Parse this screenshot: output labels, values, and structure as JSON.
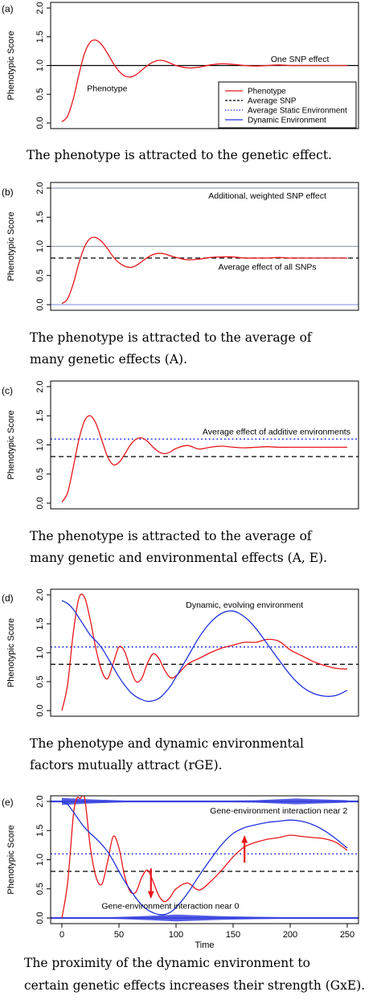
{
  "chart_data": [
    {
      "panel": "(a)",
      "type": "line",
      "ylabel": "Phenotypic Score",
      "xlim": [
        0,
        250
      ],
      "ylim": [
        0,
        2
      ],
      "yticks": [
        "0.0",
        "0.5",
        "1.0",
        "1.5",
        "2.0"
      ],
      "hlines": [
        {
          "name": "One SNP effect",
          "y": 1.0,
          "style": "solid",
          "color": "#000000"
        }
      ],
      "annotations": [
        "One SNP effect",
        "Phenotype"
      ],
      "legend": {
        "position": "bottom-right",
        "entries": [
          {
            "label": "Phenotype",
            "color": "#e8161b",
            "style": "solid"
          },
          {
            "label": "Average SNP",
            "color": "#000000",
            "style": "dashed"
          },
          {
            "label": "Average Static Environment",
            "color": "#2233dd",
            "style": "dotted"
          },
          {
            "label": "Dynamic Environment",
            "color": "#2233dd",
            "style": "solid"
          }
        ]
      },
      "series": [
        {
          "name": "Phenotype",
          "color": "#e8161b",
          "x": [
            0,
            5,
            10,
            15,
            20,
            25,
            30,
            35,
            40,
            45,
            50,
            55,
            60,
            65,
            70,
            75,
            80,
            85,
            90,
            95,
            100,
            110,
            120,
            130,
            140,
            150,
            160,
            170,
            180,
            190,
            200,
            210,
            220,
            230,
            240,
            250
          ],
          "values": [
            0.02,
            0.12,
            0.42,
            0.85,
            1.22,
            1.41,
            1.44,
            1.36,
            1.21,
            1.04,
            0.9,
            0.82,
            0.8,
            0.84,
            0.92,
            1.0,
            1.06,
            1.09,
            1.08,
            1.04,
            1.0,
            0.96,
            0.97,
            1.01,
            1.03,
            1.02,
            1.0,
            0.99,
            1.0,
            1.01,
            1.0,
            1.0,
            1.0,
            1.0,
            1.0,
            1.0
          ]
        }
      ]
    },
    {
      "panel": "(b)",
      "type": "line",
      "ylabel": "Phenotypic Score",
      "xlim": [
        0,
        250
      ],
      "ylim": [
        0,
        2
      ],
      "yticks": [
        "0.0",
        "0.5",
        "1.0",
        "1.5",
        "2.0"
      ],
      "hlines": [
        {
          "name": "Additional, weighted SNP effect",
          "y": 2.0,
          "style": "solid",
          "color": "#9aa0b4"
        },
        {
          "name": "SNP effect",
          "y": 1.0,
          "style": "solid",
          "color": "#9aa0b4"
        },
        {
          "name": "Average effect of all SNPs",
          "y": 0.8,
          "style": "dashed",
          "color": "#000000"
        },
        {
          "name": "SNP effect",
          "y": 0.0,
          "style": "solid",
          "color": "#9aa0f0"
        }
      ],
      "annotations": [
        "Additional, weighted SNP effect",
        "Average effect of all SNPs"
      ],
      "series": [
        {
          "name": "Phenotype",
          "color": "#e8161b",
          "x": [
            0,
            5,
            10,
            15,
            20,
            25,
            30,
            35,
            40,
            45,
            50,
            55,
            60,
            65,
            70,
            75,
            80,
            85,
            90,
            95,
            100,
            110,
            120,
            130,
            140,
            150,
            160,
            170,
            180,
            190,
            200,
            210,
            220,
            230,
            240,
            250
          ],
          "values": [
            0.02,
            0.1,
            0.36,
            0.72,
            1.0,
            1.14,
            1.15,
            1.08,
            0.96,
            0.82,
            0.72,
            0.66,
            0.64,
            0.67,
            0.74,
            0.81,
            0.86,
            0.88,
            0.87,
            0.84,
            0.81,
            0.77,
            0.78,
            0.81,
            0.82,
            0.82,
            0.8,
            0.8,
            0.8,
            0.81,
            0.8,
            0.8,
            0.8,
            0.8,
            0.8,
            0.8
          ]
        }
      ]
    },
    {
      "panel": "(c)",
      "type": "line",
      "ylabel": "Phenotypic Score",
      "xlim": [
        0,
        250
      ],
      "ylim": [
        0,
        2
      ],
      "yticks": [
        "0.0",
        "0.5",
        "1.0",
        "1.5",
        "2.0"
      ],
      "hlines": [
        {
          "name": "Average effect of additive environments",
          "y": 1.1,
          "style": "dotted",
          "color": "#2233dd"
        },
        {
          "name": "Average SNP",
          "y": 0.8,
          "style": "dashed",
          "color": "#000000"
        }
      ],
      "annotations": [
        "Average effect of additive environments"
      ],
      "series": [
        {
          "name": "Phenotype",
          "color": "#e8161b",
          "x": [
            0,
            5,
            10,
            15,
            20,
            25,
            30,
            35,
            40,
            45,
            50,
            55,
            60,
            65,
            70,
            75,
            80,
            85,
            90,
            95,
            100,
            110,
            120,
            130,
            140,
            150,
            160,
            170,
            180,
            190,
            200,
            210,
            220,
            230,
            240,
            250
          ],
          "values": [
            0.02,
            0.18,
            0.62,
            1.1,
            1.42,
            1.5,
            1.36,
            1.08,
            0.8,
            0.66,
            0.7,
            0.84,
            1.0,
            1.1,
            1.12,
            1.06,
            0.96,
            0.88,
            0.85,
            0.88,
            0.94,
            0.99,
            0.93,
            0.96,
            0.98,
            0.96,
            0.95,
            0.96,
            0.97,
            0.96,
            0.96,
            0.96,
            0.96,
            0.96,
            0.96,
            0.96
          ]
        }
      ]
    },
    {
      "panel": "(d)",
      "type": "line",
      "ylabel": "Phenotypic Score",
      "xlim": [
        0,
        250
      ],
      "ylim": [
        0,
        2
      ],
      "yticks": [
        "0.0",
        "0.5",
        "1.0",
        "1.5",
        "2.0"
      ],
      "hlines": [
        {
          "name": "Average Static Environment",
          "y": 1.1,
          "style": "dotted",
          "color": "#2233dd"
        },
        {
          "name": "Average SNP",
          "y": 0.8,
          "style": "dashed",
          "color": "#000000"
        }
      ],
      "annotations": [
        "Dynamic, evolving environment"
      ],
      "series": [
        {
          "name": "Phenotype",
          "color": "#e8161b",
          "x": [
            0,
            5,
            10,
            15,
            20,
            25,
            30,
            35,
            40,
            45,
            50,
            55,
            60,
            65,
            70,
            75,
            80,
            85,
            90,
            95,
            100,
            110,
            120,
            130,
            140,
            150,
            160,
            170,
            180,
            190,
            200,
            210,
            220,
            230,
            240,
            250
          ],
          "values": [
            0.0,
            0.45,
            1.35,
            1.95,
            1.95,
            1.55,
            1.05,
            0.68,
            0.55,
            0.82,
            1.1,
            1.02,
            0.72,
            0.5,
            0.56,
            0.82,
            0.98,
            0.9,
            0.7,
            0.57,
            0.6,
            0.8,
            0.9,
            1.0,
            1.08,
            1.13,
            1.18,
            1.18,
            1.23,
            1.2,
            1.05,
            0.95,
            0.85,
            0.78,
            0.73,
            0.72
          ]
        },
        {
          "name": "Dynamic Environment",
          "color": "#2233dd",
          "x": [
            0,
            5,
            10,
            15,
            20,
            25,
            30,
            35,
            40,
            45,
            50,
            55,
            60,
            65,
            70,
            75,
            80,
            85,
            90,
            95,
            100,
            110,
            120,
            130,
            140,
            150,
            160,
            170,
            180,
            190,
            200,
            210,
            220,
            230,
            240,
            250
          ],
          "values": [
            1.9,
            1.85,
            1.75,
            1.6,
            1.45,
            1.3,
            1.2,
            1.08,
            0.92,
            0.75,
            0.58,
            0.44,
            0.32,
            0.24,
            0.19,
            0.16,
            0.17,
            0.21,
            0.3,
            0.42,
            0.58,
            0.92,
            1.26,
            1.52,
            1.68,
            1.72,
            1.62,
            1.42,
            1.15,
            0.88,
            0.62,
            0.42,
            0.3,
            0.25,
            0.26,
            0.35
          ]
        }
      ]
    },
    {
      "panel": "(e)",
      "type": "line",
      "ylabel": "Phenotypic Score",
      "xlabel": "Time",
      "xlim": [
        0,
        250
      ],
      "ylim": [
        0,
        2
      ],
      "xticks": [
        "0",
        "50",
        "100",
        "150",
        "200",
        "250"
      ],
      "yticks": [
        "0.0",
        "0.5",
        "1.0",
        "1.5",
        "2.0"
      ],
      "hlines": [
        {
          "name": "Average Static Environment",
          "y": 1.1,
          "style": "dotted",
          "color": "#2233dd"
        },
        {
          "name": "Average SNP",
          "y": 0.8,
          "style": "dashed",
          "color": "#000000"
        }
      ],
      "annotations": [
        "Gene-environment interaction near 2",
        "Gene-environment interaction near 0"
      ],
      "bands": [
        {
          "y": 2.0,
          "color": "#3a43e0",
          "widths": [
            [
              0,
              0.06
            ],
            [
              20,
              0.04
            ],
            [
              60,
              0.01
            ],
            [
              110,
              0.0
            ],
            [
              170,
              0.02
            ],
            [
              205,
              0.05
            ],
            [
              250,
              0.02
            ]
          ]
        },
        {
          "y": 0.0,
          "color": "#3a43e0",
          "widths": [
            [
              0,
              0.0
            ],
            [
              40,
              0.01
            ],
            [
              80,
              0.04
            ],
            [
              100,
              0.06
            ],
            [
              140,
              0.03
            ],
            [
              200,
              0.01
            ],
            [
              250,
              0.0
            ]
          ]
        }
      ],
      "arrows": [
        {
          "x": 78,
          "from": 0.85,
          "to": 0.35,
          "color": "#e8161b"
        },
        {
          "x": 160,
          "from": 0.95,
          "to": 1.4,
          "color": "#e8161b"
        }
      ],
      "series": [
        {
          "name": "Phenotype",
          "color": "#e8161b",
          "x": [
            0,
            5,
            10,
            13,
            16,
            20,
            25,
            30,
            35,
            40,
            45,
            50,
            55,
            60,
            65,
            70,
            75,
            80,
            85,
            90,
            95,
            100,
            110,
            120,
            130,
            140,
            150,
            160,
            170,
            180,
            190,
            200,
            210,
            220,
            230,
            240,
            250
          ],
          "values": [
            0.0,
            0.6,
            1.75,
            2.05,
            2.05,
            2.05,
            1.2,
            0.7,
            0.58,
            0.96,
            1.4,
            1.2,
            0.72,
            0.45,
            0.45,
            0.7,
            0.82,
            0.62,
            0.38,
            0.28,
            0.36,
            0.5,
            0.6,
            0.48,
            0.62,
            0.82,
            1.05,
            1.22,
            1.3,
            1.35,
            1.38,
            1.42,
            1.4,
            1.38,
            1.36,
            1.3,
            1.16
          ]
        },
        {
          "name": "Dynamic Environment",
          "color": "#2233dd",
          "x": [
            0,
            5,
            10,
            15,
            20,
            25,
            30,
            35,
            40,
            45,
            50,
            55,
            60,
            65,
            70,
            75,
            80,
            85,
            90,
            95,
            100,
            110,
            120,
            130,
            140,
            150,
            160,
            170,
            180,
            190,
            200,
            210,
            220,
            230,
            240,
            250
          ],
          "values": [
            2.0,
            1.95,
            1.82,
            1.68,
            1.55,
            1.45,
            1.36,
            1.26,
            1.14,
            0.98,
            0.8,
            0.63,
            0.48,
            0.34,
            0.22,
            0.14,
            0.09,
            0.06,
            0.06,
            0.1,
            0.18,
            0.42,
            0.72,
            1.0,
            1.26,
            1.45,
            1.55,
            1.6,
            1.64,
            1.66,
            1.68,
            1.66,
            1.6,
            1.5,
            1.36,
            1.2
          ]
        }
      ]
    }
  ],
  "captions": [
    [
      "The phenotype is attracted to the genetic effect."
    ],
    [
      "The phenotype is attracted to the average of",
      "many genetic effects (A)."
    ],
    [
      "The phenotype is attracted to the average of",
      "many genetic and environmental effects (A, E)."
    ],
    [
      "The phenotype and dynamic environmental",
      "factors mutually attract (rGE)."
    ],
    [
      "The proximity of the dynamic environment to",
      "certain genetic effects increases their strength (GxE)."
    ]
  ]
}
